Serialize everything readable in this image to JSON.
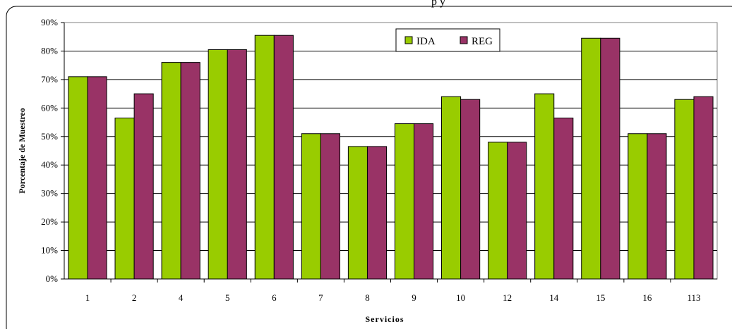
{
  "chart_data": {
    "type": "bar",
    "title": "p y",
    "xlabel": "Servicios",
    "ylabel": "Porcentaje de Muestreo",
    "categories": [
      "1",
      "2",
      "4",
      "5",
      "6",
      "7",
      "8",
      "9",
      "10",
      "12",
      "14",
      "15",
      "16",
      "113"
    ],
    "series": [
      {
        "name": "IDA",
        "color": "#99cc00",
        "values": [
          71,
          56.5,
          76,
          80.5,
          85.5,
          51,
          46.5,
          54.5,
          64,
          48,
          65,
          84.5,
          51,
          63
        ]
      },
      {
        "name": "REG",
        "color": "#993366",
        "values": [
          71,
          65,
          76,
          80.5,
          85.5,
          51,
          46.5,
          54.5,
          63,
          48,
          56.5,
          84.5,
          51,
          64
        ]
      }
    ],
    "ylim": [
      0,
      90
    ],
    "yticks": [
      "0%",
      "10%",
      "20%",
      "30%",
      "40%",
      "50%",
      "60%",
      "70%",
      "80%",
      "90%"
    ],
    "grid": true,
    "legend_position": "top-center"
  }
}
